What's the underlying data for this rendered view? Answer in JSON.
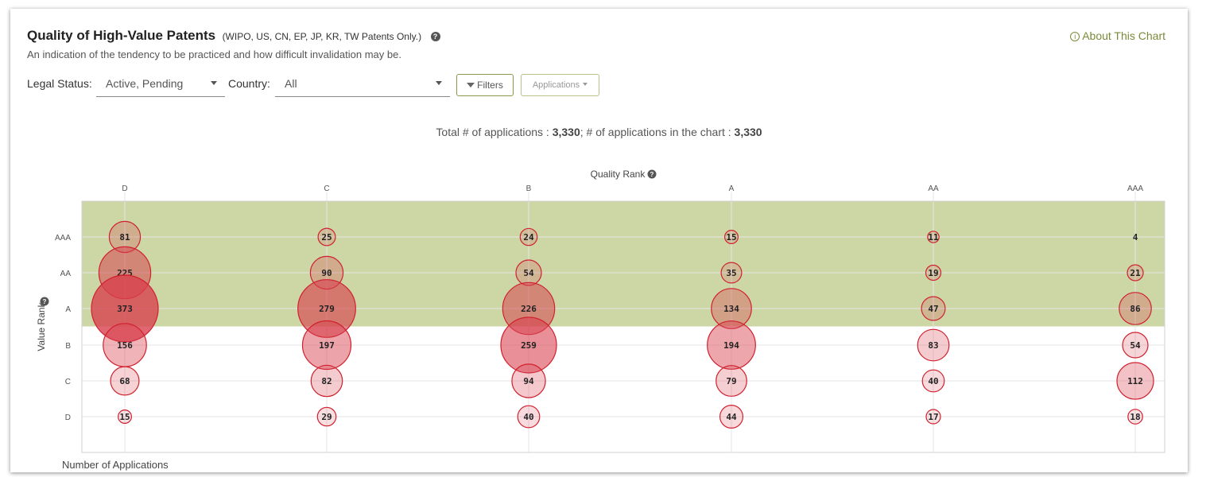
{
  "header": {
    "title": "Quality of High-Value Patents",
    "title_note": "(WIPO, US, CN, EP, JP, KR, TW Patents Only.)",
    "subtitle": "An indication of the tendency to be practiced and how difficult invalidation may be.",
    "about_label": "About This Chart",
    "help_icon": "question-circle-icon",
    "about_icon": "info-circle-icon"
  },
  "filters": {
    "legal_status_label": "Legal Status:",
    "legal_status_value": "Active, Pending",
    "country_label": "Country:",
    "country_value": "All",
    "filters_button": "Filters",
    "applications_button": "Applications"
  },
  "summary": {
    "total_label": "Total # of applications : ",
    "total_value": "3,330",
    "separator": "; ",
    "in_chart_label": "# of applications in the chart : ",
    "in_chart_value": "3,330"
  },
  "chart_data": {
    "type": "scatter",
    "subtype": "bubble",
    "xlabel": "Quality Rank",
    "ylabel": "Value Rank",
    "size_label": "Number of Applications",
    "x_categories": [
      "D",
      "C",
      "B",
      "A",
      "AA",
      "AAA"
    ],
    "y_categories": [
      "AAA",
      "AA",
      "A",
      "B",
      "C",
      "D"
    ],
    "highlight_rows": [
      "AAA",
      "AA",
      "A"
    ],
    "colors": {
      "highlight_band": "#cdd6a5",
      "bubble_fill": "#d8414e",
      "bubble_stroke": "#d0202e"
    },
    "values": [
      [
        81,
        25,
        24,
        15,
        11,
        4
      ],
      [
        225,
        90,
        54,
        35,
        19,
        21
      ],
      [
        373,
        279,
        226,
        134,
        47,
        86
      ],
      [
        156,
        197,
        259,
        194,
        83,
        54
      ],
      [
        68,
        82,
        94,
        79,
        40,
        112
      ],
      [
        15,
        29,
        40,
        44,
        17,
        18
      ]
    ]
  }
}
